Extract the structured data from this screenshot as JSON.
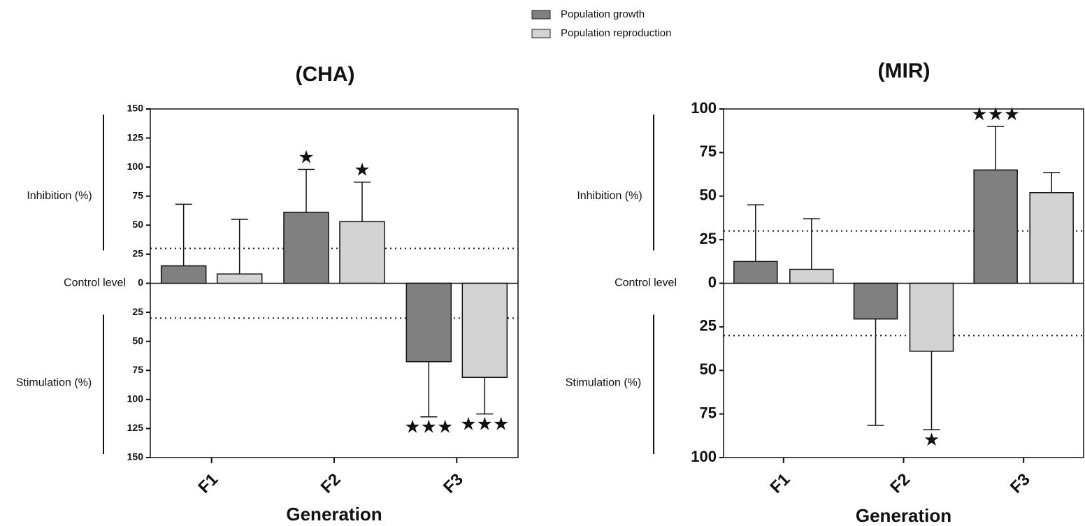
{
  "chart_data": [
    {
      "type": "bar",
      "title": "(CHA)",
      "x_label": "Generation",
      "annotations": {
        "inhibition": "Inhibition (%)",
        "control": "Control level",
        "stimulation": "Stimulation (%)"
      },
      "categories": [
        "F1",
        "F2",
        "F3"
      ],
      "series": [
        {
          "name": "Population growth",
          "color": "#808080",
          "values": [
            15,
            61,
            -67.5
          ],
          "errors": [
            53,
            37,
            47.5
          ],
          "significance": [
            null,
            "★",
            "★★★"
          ]
        },
        {
          "name": "Population reproduction",
          "color": "#d3d3d3",
          "values": [
            8,
            53,
            -81
          ],
          "errors": [
            47,
            34,
            31.5
          ],
          "significance": [
            null,
            "★",
            "★★★"
          ]
        }
      ],
      "ylim": [
        -150,
        150
      ],
      "yticks": [
        {
          "value": -150,
          "label": "150"
        },
        {
          "value": -125,
          "label": "125"
        },
        {
          "value": -100,
          "label": "100"
        },
        {
          "value": -75,
          "label": "75"
        },
        {
          "value": -50,
          "label": "50"
        },
        {
          "value": -25,
          "label": "25"
        },
        0,
        25,
        50,
        75,
        100,
        125,
        150
      ],
      "reference_lines": [
        30,
        -30
      ]
    },
    {
      "type": "bar",
      "title": "(MIR)",
      "x_label": "Generation",
      "annotations": {
        "inhibition": "Inhibition (%)",
        "control": "Control level",
        "stimulation": "Stimulation (%)"
      },
      "categories": [
        "F1",
        "F2",
        "F3"
      ],
      "series": [
        {
          "color": "#808080",
          "values": [
            12.5,
            -20.5,
            65
          ],
          "errors": [
            32.5,
            61,
            25
          ],
          "significance": [
            null,
            null,
            "★★★"
          ]
        },
        {
          "color": "#d3d3d3",
          "values": [
            8,
            -39,
            52
          ],
          "errors": [
            29,
            45,
            11.5
          ],
          "significance": [
            null,
            "★",
            null
          ]
        }
      ],
      "ylim": [
        -100,
        100
      ],
      "yticks": [
        {
          "value": -100,
          "label": "100"
        },
        {
          "value": -75,
          "label": "75"
        },
        {
          "value": -50,
          "label": "50"
        },
        {
          "value": -25,
          "label": "25"
        },
        0,
        25,
        50,
        75,
        100
      ],
      "reference_lines": [
        30,
        -30
      ]
    }
  ]
}
